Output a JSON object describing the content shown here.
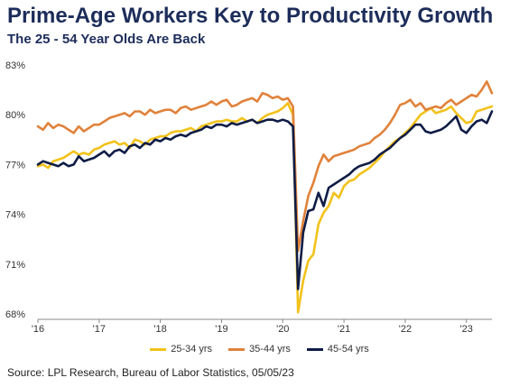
{
  "header": {
    "title": "Prime-Age Workers Key to Productivity Growth",
    "subtitle": "The 25 - 54 Year Olds Are Back"
  },
  "footer": {
    "source": "Source: LPL Research, Bureau of Labor Statistics, 05/05/23"
  },
  "colors": {
    "s1": "#f2c21b",
    "s2": "#e0823b",
    "s3": "#0f1c45"
  },
  "chart_data": {
    "type": "line",
    "x_start": "2016-01",
    "x_end": "2023-04",
    "xtick_labels": [
      "'16",
      "'17",
      "'18",
      "'19",
      "'20",
      "'21",
      "'22",
      "'23"
    ],
    "ytick_labels": [
      "68%",
      "71%",
      "74%",
      "77%",
      "80%",
      "83%"
    ],
    "ylim": [
      68,
      83
    ],
    "legend_position": "bottom",
    "grid": false,
    "series": [
      {
        "name": "25-34 yrs",
        "color": "#f2c21b",
        "values": [
          76.9,
          77.0,
          76.8,
          77.2,
          77.3,
          77.4,
          77.6,
          77.8,
          77.6,
          77.7,
          77.6,
          77.9,
          78.0,
          78.2,
          78.3,
          78.4,
          78.2,
          78.3,
          78.0,
          78.5,
          78.4,
          78.2,
          78.5,
          78.6,
          78.7,
          78.7,
          78.9,
          79.0,
          79.0,
          79.1,
          79.2,
          79.0,
          79.3,
          79.4,
          79.5,
          79.6,
          79.6,
          79.7,
          79.6,
          79.6,
          79.8,
          79.6,
          79.7,
          79.5,
          79.8,
          80.0,
          80.1,
          80.2,
          80.4,
          80.7,
          80.0,
          68.1,
          70.0,
          71.2,
          71.6,
          73.4,
          74.1,
          74.5,
          75.3,
          75.0,
          75.7,
          76.0,
          76.1,
          76.4,
          76.6,
          76.8,
          77.1,
          77.4,
          77.8,
          78.1,
          78.4,
          78.6,
          78.9,
          79.2,
          79.6,
          80.0,
          80.2,
          80.4,
          80.1,
          80.2,
          80.3,
          80.5,
          80.1,
          79.8,
          79.5,
          79.6,
          80.2,
          80.3,
          80.4,
          80.5
        ]
      },
      {
        "name": "35-44 yrs",
        "color": "#e0823b",
        "values": [
          79.3,
          79.1,
          79.5,
          79.2,
          79.4,
          79.3,
          79.1,
          78.9,
          79.3,
          79.0,
          79.2,
          79.4,
          79.4,
          79.6,
          79.8,
          79.9,
          80.0,
          80.1,
          79.9,
          80.2,
          80.2,
          80.0,
          80.3,
          80.1,
          80.2,
          80.3,
          80.3,
          80.1,
          80.4,
          80.5,
          80.3,
          80.4,
          80.5,
          80.6,
          80.8,
          80.6,
          80.8,
          80.9,
          80.5,
          80.6,
          80.8,
          80.9,
          81.0,
          80.8,
          81.3,
          81.2,
          81.0,
          81.1,
          80.9,
          81.0,
          80.5,
          71.8,
          73.6,
          75.1,
          75.9,
          76.9,
          77.6,
          77.2,
          77.5,
          77.6,
          77.7,
          77.8,
          77.9,
          78.1,
          78.2,
          78.3,
          78.6,
          78.8,
          79.1,
          79.5,
          80.0,
          80.6,
          80.7,
          80.9,
          80.5,
          80.7,
          80.3,
          80.4,
          80.5,
          80.4,
          80.7,
          80.9,
          80.6,
          80.8,
          81.0,
          81.2,
          81.1,
          81.5,
          82.0,
          81.3
        ]
      },
      {
        "name": "45-54 yrs",
        "color": "#0f1c45",
        "values": [
          77.0,
          77.2,
          77.1,
          77.0,
          76.9,
          77.1,
          76.9,
          77.0,
          77.5,
          77.2,
          77.3,
          77.4,
          77.6,
          77.8,
          77.5,
          77.8,
          77.9,
          77.7,
          78.1,
          78.2,
          78.0,
          78.3,
          78.2,
          78.5,
          78.4,
          78.6,
          78.5,
          78.7,
          78.8,
          78.7,
          78.9,
          79.0,
          79.1,
          79.3,
          79.2,
          79.4,
          79.4,
          79.3,
          79.5,
          79.4,
          79.5,
          79.6,
          79.7,
          79.5,
          79.6,
          79.7,
          79.7,
          79.6,
          79.7,
          79.6,
          79.3,
          69.5,
          72.9,
          74.2,
          74.3,
          75.3,
          74.5,
          75.6,
          75.8,
          76.0,
          76.2,
          76.4,
          76.7,
          76.9,
          77.0,
          77.1,
          77.3,
          77.6,
          77.8,
          78.0,
          78.3,
          78.6,
          78.8,
          79.1,
          79.4,
          79.4,
          79.0,
          78.9,
          79.0,
          79.1,
          79.3,
          79.6,
          79.9,
          79.1,
          78.9,
          79.3,
          79.6,
          79.7,
          79.5,
          80.2
        ]
      }
    ]
  }
}
